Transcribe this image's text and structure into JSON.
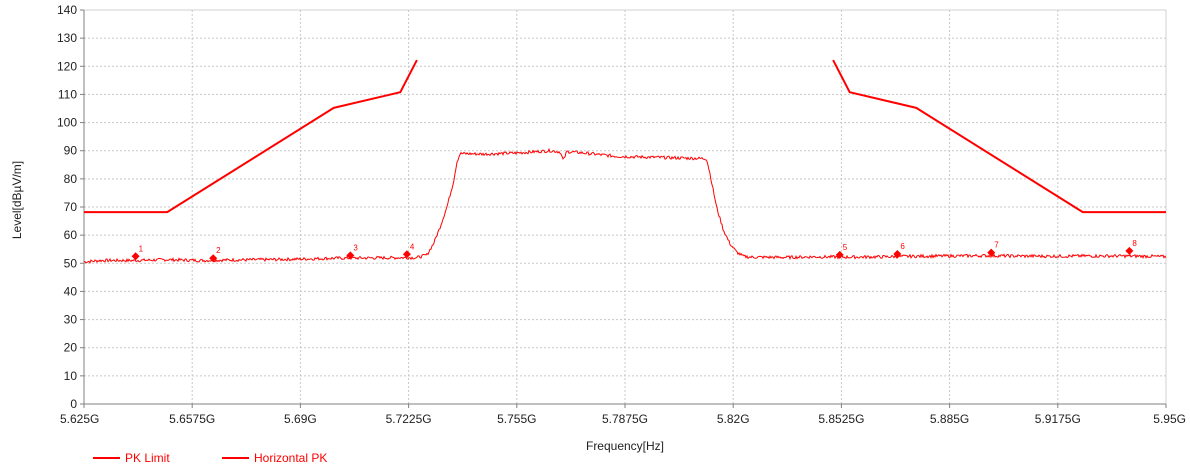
{
  "chart_data": {
    "type": "line",
    "xlabel": "Frequency[Hz]",
    "ylabel": "Level[dBµV/m]",
    "x_unit": "GHz",
    "xlim": [
      5.625,
      5.95
    ],
    "ylim": [
      0,
      140
    ],
    "x_ticks": [
      5.625,
      5.6575,
      5.69,
      5.7225,
      5.755,
      5.7875,
      5.82,
      5.8525,
      5.885,
      5.9175,
      5.95
    ],
    "x_tick_labels": [
      "5.625G",
      "5.6575G",
      "5.69G",
      "5.7225G",
      "5.755G",
      "5.7875G",
      "5.82G",
      "5.8525G",
      "5.885G",
      "5.9175G",
      "5.95G"
    ],
    "y_ticks": [
      0,
      10,
      20,
      30,
      40,
      50,
      60,
      70,
      80,
      90,
      100,
      110,
      120,
      130,
      140
    ],
    "y_tick_labels": [
      "0",
      "10",
      "20",
      "30",
      "40",
      "50",
      "60",
      "70",
      "80",
      "90",
      "100",
      "110",
      "120",
      "130",
      "140"
    ],
    "grid": true,
    "legend_position": "bottom-left",
    "series": [
      {
        "name": "PK Limit",
        "color": "#ff0000",
        "segments": [
          {
            "x": [
              5.625,
              5.65,
              5.7,
              5.72,
              5.725
            ],
            "y": [
              68.2,
              68.2,
              105.2,
              110.8,
              122.2
            ]
          },
          {
            "x": [
              5.85,
              5.855,
              5.875,
              5.925,
              5.95
            ],
            "y": [
              122.2,
              110.8,
              105.2,
              68.2,
              68.2
            ]
          }
        ]
      },
      {
        "name": "Horizontal PK",
        "color": "#ff0000",
        "x": [
          5.625,
          5.63,
          5.64,
          5.65,
          5.66,
          5.67,
          5.68,
          5.69,
          5.7,
          5.71,
          5.72,
          5.725,
          5.728,
          5.73,
          5.732,
          5.734,
          5.736,
          5.737,
          5.738,
          5.745,
          5.755,
          5.765,
          5.768,
          5.769,
          5.77,
          5.775,
          5.785,
          5.795,
          5.805,
          5.812,
          5.813,
          5.815,
          5.817,
          5.819,
          5.821,
          5.823,
          5.825,
          5.835,
          5.845,
          5.855,
          5.865,
          5.875,
          5.885,
          5.895,
          5.905,
          5.915,
          5.925,
          5.935,
          5.945,
          5.95
        ],
        "y": [
          50.5,
          51.0,
          51.0,
          51.3,
          51.0,
          51.2,
          51.3,
          51.5,
          51.8,
          51.9,
          52.0,
          52.0,
          53.0,
          57.0,
          63.0,
          70.0,
          79.0,
          86.0,
          89.0,
          88.8,
          89.2,
          90.0,
          89.6,
          86.5,
          89.7,
          89.2,
          88.0,
          87.7,
          87.4,
          87.2,
          82.0,
          70.0,
          62.0,
          57.0,
          54.0,
          52.5,
          52.2,
          52.1,
          52.3,
          52.2,
          52.3,
          52.5,
          52.6,
          52.7,
          52.6,
          52.5,
          52.6,
          52.6,
          52.5,
          52.3
        ]
      }
    ],
    "markers": [
      {
        "label": "1",
        "x": 5.6405,
        "y": 52.5
      },
      {
        "label": "2",
        "x": 5.6638,
        "y": 51.8
      },
      {
        "label": "3",
        "x": 5.705,
        "y": 52.8
      },
      {
        "label": "4",
        "x": 5.722,
        "y": 53.2
      },
      {
        "label": "5",
        "x": 5.852,
        "y": 53.0
      },
      {
        "label": "6",
        "x": 5.8693,
        "y": 53.3
      },
      {
        "label": "7",
        "x": 5.8975,
        "y": 53.8
      },
      {
        "label": "8",
        "x": 5.939,
        "y": 54.4
      }
    ]
  }
}
